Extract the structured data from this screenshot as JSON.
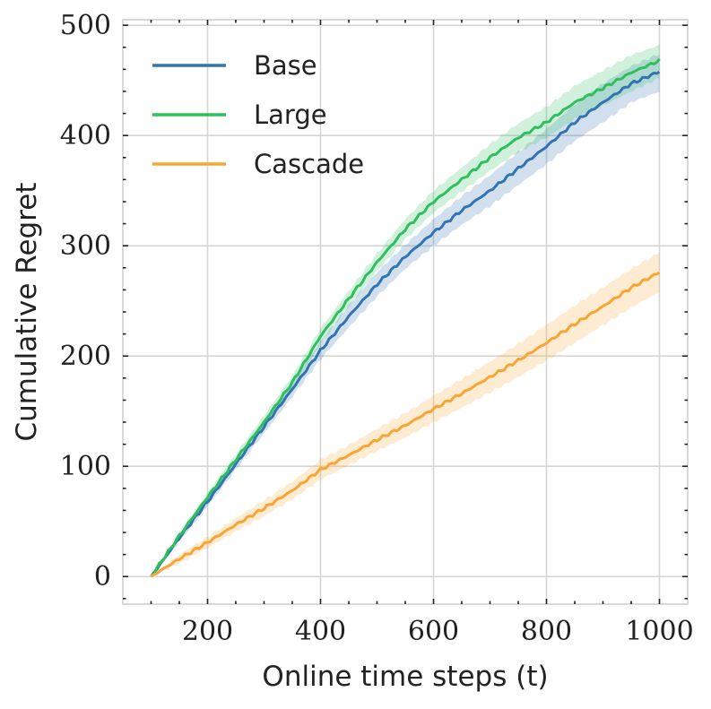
{
  "chart_data": {
    "type": "line",
    "title": "",
    "xlabel": "Online time steps (t)",
    "ylabel": "Cumulative Regret",
    "xlim": [
      50,
      1050
    ],
    "ylim": [
      -25,
      505
    ],
    "xticks": [
      200,
      400,
      600,
      800,
      1000
    ],
    "yticks": [
      0,
      100,
      200,
      300,
      400,
      500
    ],
    "grid": true,
    "legend_position": "top-left",
    "x": [
      100,
      150,
      200,
      250,
      300,
      350,
      400,
      450,
      500,
      550,
      600,
      650,
      700,
      750,
      800,
      850,
      900,
      950,
      1000
    ],
    "series": [
      {
        "name": "Base",
        "color": "#3274b3",
        "values": [
          0,
          35,
          68,
          102,
          136,
          170,
          205,
          236,
          265,
          290,
          312,
          332,
          350,
          370,
          390,
          412,
          430,
          447,
          458
        ],
        "lower": [
          0,
          32,
          64,
          97,
          130,
          163,
          197,
          226,
          254,
          279,
          300,
          319,
          336,
          355,
          374,
          395,
          412,
          430,
          440
        ],
        "upper": [
          0,
          38,
          72,
          107,
          142,
          177,
          213,
          246,
          276,
          301,
          324,
          345,
          364,
          385,
          406,
          428,
          447,
          463,
          474
        ]
      },
      {
        "name": "Large",
        "color": "#2fbf5e",
        "values": [
          0,
          37,
          72,
          106,
          140,
          176,
          218,
          252,
          285,
          315,
          340,
          360,
          380,
          398,
          412,
          430,
          443,
          457,
          468
        ],
        "lower": [
          0,
          34,
          68,
          101,
          134,
          170,
          211,
          245,
          277,
          306,
          330,
          349,
          368,
          385,
          398,
          415,
          427,
          440,
          452
        ],
        "upper": [
          0,
          40,
          76,
          111,
          146,
          182,
          225,
          259,
          293,
          324,
          350,
          371,
          392,
          411,
          426,
          445,
          459,
          473,
          482
        ]
      },
      {
        "name": "Cascade",
        "color": "#f8a533",
        "values": [
          0,
          16,
          31,
          47,
          62,
          78,
          97,
          110,
          124,
          137,
          152,
          166,
          181,
          196,
          212,
          229,
          245,
          262,
          276
        ],
        "lower": [
          0,
          12,
          26,
          41,
          55,
          70,
          88,
          101,
          114,
          126,
          140,
          153,
          167,
          181,
          196,
          212,
          228,
          244,
          258
        ],
        "upper": [
          0,
          20,
          36,
          53,
          69,
          86,
          106,
          119,
          134,
          148,
          164,
          179,
          195,
          211,
          228,
          246,
          262,
          279,
          294
        ]
      }
    ]
  }
}
